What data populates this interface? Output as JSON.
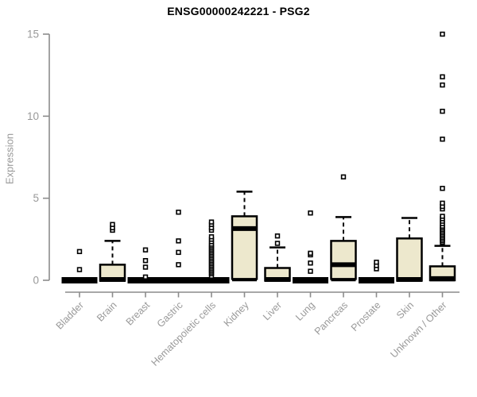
{
  "chart_data": {
    "type": "boxplot",
    "title": "ENSG00000242221 - PSG2",
    "ylabel": "Expression",
    "xlabel": "",
    "ylim": [
      0,
      15
    ],
    "yticks": [
      0,
      5,
      10,
      15
    ],
    "grid": false,
    "legend": null,
    "categories": [
      "Bladder",
      "Brain",
      "Breast",
      "Gastric",
      "Hematopoietic cells",
      "Kidney",
      "Liver",
      "Lung",
      "Pancreas",
      "Prostate",
      "Skin",
      "Unknown / Other"
    ],
    "boxes": [
      {
        "category": "Bladder",
        "q1": 0,
        "median": 0,
        "q3": 0,
        "whisker_low": 0,
        "whisker_high": 0,
        "outliers": [
          0.65,
          1.75
        ]
      },
      {
        "category": "Brain",
        "q1": 0,
        "median": 0.05,
        "q3": 0.95,
        "whisker_low": 0,
        "whisker_high": 2.4,
        "outliers": [
          3.05,
          3.2,
          3.4
        ]
      },
      {
        "category": "Breast",
        "q1": 0,
        "median": 0,
        "q3": 0,
        "whisker_low": 0,
        "whisker_high": 0,
        "outliers": [
          0.2,
          0.8,
          1.2,
          1.85
        ]
      },
      {
        "category": "Gastric",
        "q1": 0,
        "median": 0,
        "q3": 0,
        "whisker_low": 0,
        "whisker_high": 0,
        "outliers": [
          0.95,
          1.7,
          2.4,
          4.15
        ]
      },
      {
        "category": "Hematopoietic cells",
        "q1": 0,
        "median": 0,
        "q3": 0,
        "whisker_low": 0,
        "whisker_high": 0,
        "outliers": [
          0.25,
          0.4,
          0.5,
          0.6,
          0.7,
          0.8,
          0.9,
          1.0,
          1.1,
          1.2,
          1.3,
          1.4,
          1.5,
          1.6,
          1.7,
          1.8,
          1.9,
          2.0,
          2.1,
          2.2,
          2.35,
          2.5,
          2.65,
          3.05,
          3.2,
          3.4,
          3.55
        ]
      },
      {
        "category": "Kidney",
        "q1": 0.08,
        "median": 3.15,
        "q3": 3.9,
        "whisker_low": 0,
        "whisker_high": 5.4,
        "outliers": []
      },
      {
        "category": "Liver",
        "q1": 0,
        "median": 0.05,
        "q3": 0.75,
        "whisker_low": 0,
        "whisker_high": 2.0,
        "outliers": [
          2.25,
          2.7
        ]
      },
      {
        "category": "Lung",
        "q1": 0,
        "median": 0,
        "q3": 0,
        "whisker_low": 0,
        "whisker_high": 0,
        "outliers": [
          0.55,
          1.05,
          1.55,
          1.65,
          4.1
        ]
      },
      {
        "category": "Pancreas",
        "q1": 0.08,
        "median": 0.95,
        "q3": 2.4,
        "whisker_low": 0,
        "whisker_high": 3.85,
        "outliers": [
          6.3
        ]
      },
      {
        "category": "Prostate",
        "q1": 0,
        "median": 0,
        "q3": 0,
        "whisker_low": 0,
        "whisker_high": 0,
        "outliers": [
          0.7,
          0.9,
          1.1
        ]
      },
      {
        "category": "Skin",
        "q1": 0,
        "median": 0.05,
        "q3": 2.55,
        "whisker_low": 0,
        "whisker_high": 3.8,
        "outliers": []
      },
      {
        "category": "Unknown / Other",
        "q1": 0,
        "median": 0.1,
        "q3": 0.85,
        "whisker_low": 0,
        "whisker_high": 2.1,
        "outliers": [
          2.3,
          2.4,
          2.5,
          2.6,
          2.7,
          2.8,
          2.9,
          3.0,
          3.1,
          3.2,
          3.3,
          3.45,
          3.6,
          3.75,
          3.9,
          4.35,
          4.5,
          4.7,
          5.6,
          8.6,
          10.3,
          11.9,
          12.4,
          15.0
        ]
      }
    ],
    "style": {
      "box_fill": "#EDE8CD",
      "box_border": "#000000",
      "median_color": "#000000",
      "outlier_shape": "open-square",
      "outlier_fill": "#FFFFFF",
      "axis_color": "#8C8C8C",
      "tick_label_color": "#999999",
      "title_color": "#000000",
      "background": "#FFFFFF"
    }
  }
}
